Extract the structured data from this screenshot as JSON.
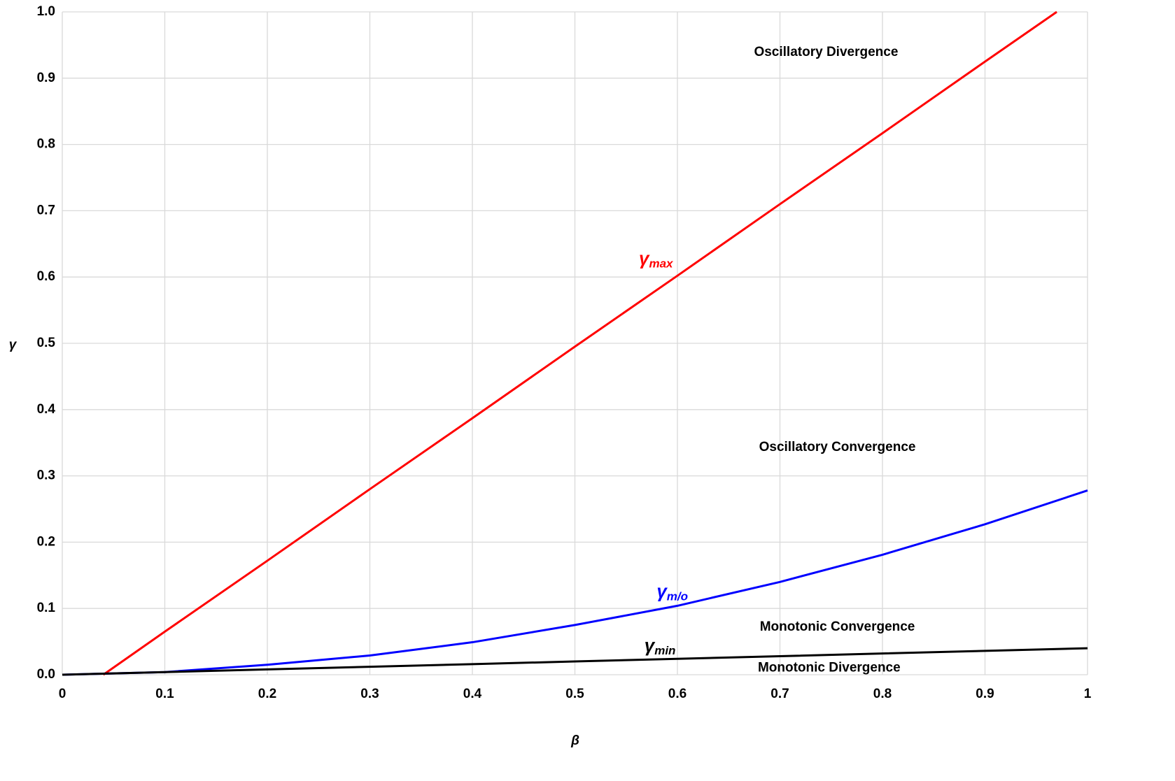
{
  "chart_data": {
    "type": "line",
    "x_label": "β",
    "y_label": "γ",
    "xlim": [
      0,
      1
    ],
    "ylim": [
      0,
      1
    ],
    "xticks": [
      0,
      0.1,
      0.2,
      0.3,
      0.4,
      0.5,
      0.6,
      0.7,
      0.8,
      0.9,
      1
    ],
    "yticks": [
      {
        "value": 0,
        "label": "0.0"
      },
      0.1,
      0.2,
      0.3,
      0.4,
      0.5,
      0.6,
      0.7,
      0.8,
      0.9,
      {
        "value": 1,
        "label": "1.0"
      }
    ],
    "grid": true,
    "series": [
      {
        "name": "γ",
        "subscript": "max",
        "color": "#ff0000",
        "label_at": [
          0.579,
          0.626
        ],
        "x": [
          0.04,
          0.1,
          0.2,
          0.3,
          0.4,
          0.5,
          0.6,
          0.7,
          0.8,
          0.9,
          0.97
        ],
        "values": [
          0,
          0.065,
          0.172,
          0.28,
          0.387,
          0.495,
          0.602,
          0.71,
          0.817,
          0.925,
          1.0
        ]
      },
      {
        "name": "γ",
        "subscript": "m/o",
        "color": "#0000ff",
        "label_at": [
          0.595,
          0.124
        ],
        "x": [
          0,
          0.1,
          0.2,
          0.3,
          0.4,
          0.5,
          0.6,
          0.7,
          0.8,
          0.9,
          1
        ],
        "values": [
          0,
          0.004,
          0.015,
          0.029,
          0.049,
          0.075,
          0.104,
          0.14,
          0.181,
          0.227,
          0.278
        ]
      },
      {
        "name": "γ",
        "subscript": "min",
        "color": "#000000",
        "label_at": [
          0.583,
          0.042
        ],
        "x": [
          0,
          0.1,
          0.2,
          0.3,
          0.4,
          0.5,
          0.6,
          0.7,
          0.8,
          0.9,
          1
        ],
        "values": [
          0,
          0.004,
          0.008,
          0.012,
          0.016,
          0.02,
          0.024,
          0.028,
          0.032,
          0.036,
          0.04
        ]
      }
    ],
    "annotations": [
      {
        "text": "Oscillatory Divergence",
        "x": 0.745,
        "y": 0.939
      },
      {
        "text": "Oscillatory Convergence",
        "x": 0.756,
        "y": 0.343
      },
      {
        "text": "Monotonic Convergence",
        "x": 0.756,
        "y": 0.072
      },
      {
        "text": "Monotonic Divergence",
        "x": 0.748,
        "y": 0.01
      }
    ]
  }
}
